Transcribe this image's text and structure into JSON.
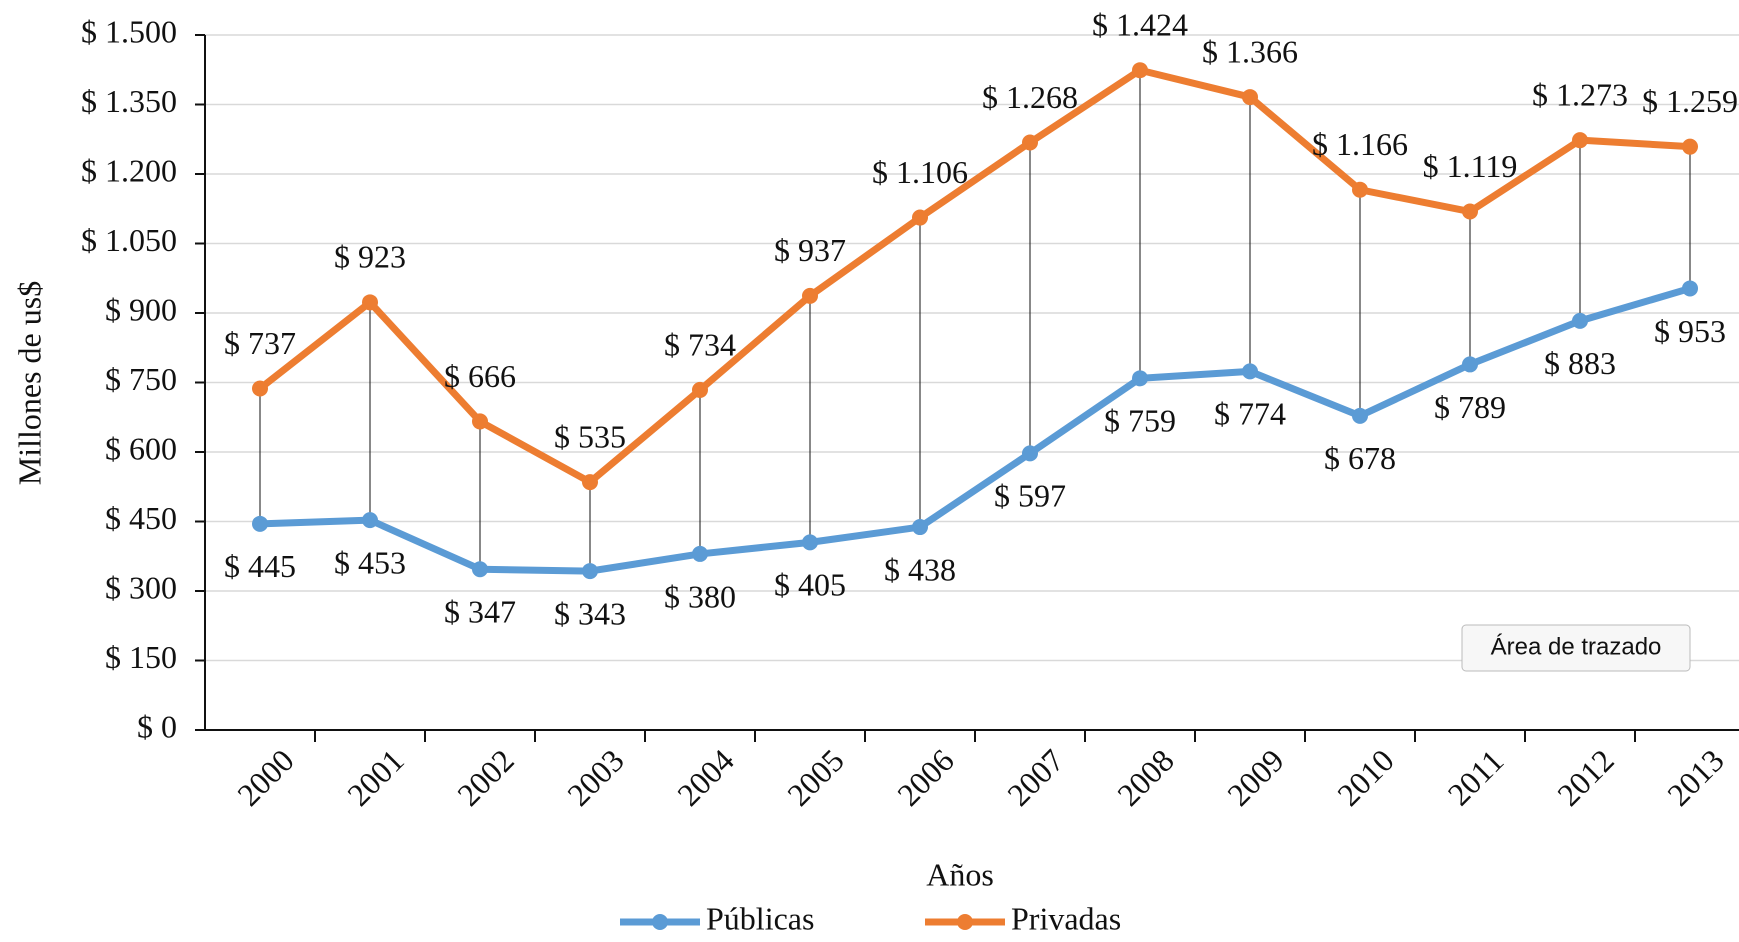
{
  "chart_data": {
    "type": "line",
    "categories": [
      "2000",
      "2001",
      "2002",
      "2003",
      "2004",
      "2005",
      "2006",
      "2007",
      "2008",
      "2009",
      "2010",
      "2011",
      "2012",
      "2013"
    ],
    "series": [
      {
        "name": "Públicas",
        "color": "#5b9bd5",
        "values": [
          445,
          453,
          347,
          343,
          380,
          405,
          438,
          597,
          759,
          774,
          678,
          789,
          883,
          953
        ],
        "value_labels": [
          "$ 445",
          "$ 453",
          "$ 347",
          "$ 343",
          "$ 380",
          "$ 405",
          "$ 438",
          "$ 597",
          "$ 759",
          "$ 774",
          "$ 678",
          "$ 789",
          "$ 883",
          "$ 953"
        ]
      },
      {
        "name": "Privadas",
        "color": "#ed7d31",
        "values": [
          737,
          923,
          666,
          535,
          734,
          937,
          1106,
          1268,
          1424,
          1366,
          1166,
          1119,
          1273,
          1259
        ],
        "value_labels": [
          "$ 737",
          "$ 923",
          "$ 666",
          "$ 535",
          "$ 734",
          "$ 937",
          "$ 1.106",
          "$ 1.268",
          "$ 1.424",
          "$ 1.366",
          "$ 1.166",
          "$ 1.119",
          "$ 1.273",
          "$ 1.259"
        ]
      }
    ],
    "x_label": "Años",
    "y_label": "Millones de us$",
    "ylim": [
      0,
      1500
    ],
    "yticks": [
      {
        "value": 0,
        "label": "$ 0"
      },
      {
        "value": 150,
        "label": "$ 150"
      },
      {
        "value": 300,
        "label": "$ 300"
      },
      {
        "value": 450,
        "label": "$ 450"
      },
      {
        "value": 600,
        "label": "$ 600"
      },
      {
        "value": 750,
        "label": "$ 750"
      },
      {
        "value": 900,
        "label": "$ 900"
      },
      {
        "value": 1050,
        "label": "$ 1.050"
      },
      {
        "value": 1200,
        "label": "$ 1.200"
      },
      {
        "value": 1350,
        "label": "$ 1.350"
      },
      {
        "value": 1500,
        "label": "$ 1.500"
      }
    ],
    "grid": true,
    "drop_lines": true,
    "legend": "bottom",
    "tooltip": "Área de trazado"
  }
}
